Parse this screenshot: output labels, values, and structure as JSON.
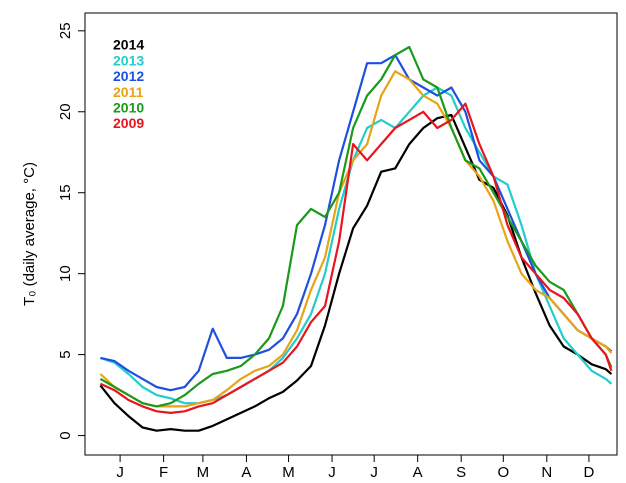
{
  "chart_data": {
    "type": "line",
    "y_label": "T₀ (daily average, °C)",
    "x": [
      1,
      11,
      21,
      31,
      41,
      51,
      61,
      71,
      81,
      91,
      101,
      111,
      121,
      131,
      141,
      151,
      161,
      171,
      181,
      191,
      201,
      211,
      221,
      231,
      241,
      251,
      261,
      271,
      281,
      291,
      301,
      311,
      321,
      331,
      341,
      351,
      361,
      365
    ],
    "xlim": [
      -10,
      369
    ],
    "xticks": [
      {
        "value": 15,
        "label": "J"
      },
      {
        "value": 46,
        "label": "F"
      },
      {
        "value": 74,
        "label": "M"
      },
      {
        "value": 105,
        "label": "A"
      },
      {
        "value": 135,
        "label": "M"
      },
      {
        "value": 166,
        "label": "J"
      },
      {
        "value": 196,
        "label": "J"
      },
      {
        "value": 227,
        "label": "A"
      },
      {
        "value": 258,
        "label": "S"
      },
      {
        "value": 288,
        "label": "O"
      },
      {
        "value": 319,
        "label": "N"
      },
      {
        "value": 349,
        "label": "D"
      }
    ],
    "ylim": [
      -1.2,
      26.1
    ],
    "yticks": [
      0,
      5,
      10,
      15,
      20,
      25
    ],
    "legend": "top-left",
    "series": [
      {
        "name": "2014",
        "color": "#000000",
        "values": [
          3.1,
          2,
          1.2,
          0.5,
          0.3,
          0.4,
          0.3,
          0.3,
          0.6,
          1,
          1.4,
          1.8,
          2.3,
          2.7,
          3.4,
          4.3,
          6.8,
          10,
          12.8,
          14.2,
          16.3,
          16.5,
          18,
          19,
          19.6,
          19.8,
          17.8,
          15.8,
          15.3,
          13.6,
          11,
          8.8,
          6.8,
          5.5,
          5,
          4.4,
          4.1,
          3.8
        ]
      },
      {
        "name": "2013",
        "color": "#22cccc",
        "values": [
          4.8,
          4.5,
          3.8,
          3,
          2.5,
          2.3,
          2,
          2,
          2.2,
          2.5,
          3,
          3.5,
          4,
          4.8,
          6,
          7.5,
          10,
          14,
          17,
          19,
          19.5,
          19,
          20,
          21,
          21.5,
          21,
          19,
          17.5,
          16,
          15.5,
          13,
          10,
          8,
          6,
          5,
          4,
          3.5,
          3.2
        ]
      },
      {
        "name": "2012",
        "color": "#1f4fe0",
        "values": [
          4.8,
          4.6,
          4,
          3.5,
          3,
          2.8,
          3,
          4,
          6.6,
          4.8,
          4.8,
          5,
          5.3,
          6,
          7.5,
          10,
          13,
          17,
          20,
          23,
          23,
          23.5,
          22,
          21.5,
          21,
          21.5,
          20,
          17,
          16,
          14,
          12,
          10,
          8.5,
          7.5,
          6.5,
          6,
          5.5,
          5.2
        ]
      },
      {
        "name": "2011",
        "color": "#e8a317",
        "values": [
          3.8,
          3,
          2.5,
          2,
          1.8,
          1.8,
          1.8,
          2,
          2.2,
          2.8,
          3.5,
          4,
          4.3,
          5,
          6.5,
          9,
          11,
          15,
          17,
          18,
          21,
          22.5,
          22,
          21,
          20.5,
          19,
          17,
          16,
          14.5,
          12,
          10,
          9,
          8.5,
          7.5,
          6.5,
          6,
          5.5,
          5.1
        ]
      },
      {
        "name": "2010",
        "color": "#1a9a1a",
        "values": [
          3.5,
          3,
          2.5,
          2,
          1.8,
          2,
          2.5,
          3.2,
          3.8,
          4,
          4.3,
          5,
          6,
          8,
          13,
          14,
          13.5,
          15,
          19,
          21,
          22,
          23.5,
          24,
          22,
          21.5,
          19,
          17,
          16.5,
          15,
          13.5,
          12,
          10.5,
          9.5,
          9,
          7.5,
          6,
          5,
          4.2
        ]
      },
      {
        "name": "2009",
        "color": "#e8141e",
        "values": [
          3.2,
          2.8,
          2.2,
          1.8,
          1.5,
          1.4,
          1.5,
          1.8,
          2,
          2.5,
          3,
          3.5,
          4,
          4.5,
          5.5,
          7,
          8,
          12,
          18,
          17,
          18,
          19,
          19.5,
          20,
          19,
          19.5,
          20.5,
          18,
          16,
          13,
          11,
          10,
          9,
          8.5,
          7.5,
          6,
          5,
          4
        ]
      }
    ]
  }
}
